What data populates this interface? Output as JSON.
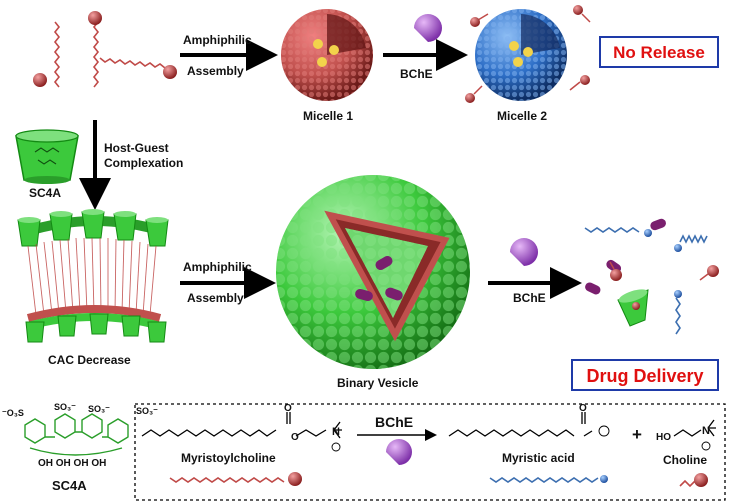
{
  "top": {
    "assembly_line1": "Amphiphilic",
    "assembly_line2": "Assembly",
    "micelle1": "Micelle 1",
    "enzyme": "BChE",
    "micelle2": "Micelle 2",
    "no_release": "No Release"
  },
  "middle": {
    "host_guest_line1": "Host-Guest",
    "host_guest_line2": "Complexation",
    "sc4a": "SC4A",
    "assembly_line1": "Amphiphilic",
    "assembly_line2": "Assembly",
    "cac": "CAC Decrease",
    "vesicle": "Binary Vesicle",
    "enzyme": "BChE",
    "drug_delivery": "Drug Delivery"
  },
  "bottom": {
    "sc4a": "SC4A",
    "so3_a": "SO₃⁻",
    "so3_b": "⁻O₃S",
    "so3_c": "SO₃⁻",
    "so3_d": "SO₃⁻",
    "oh": "OH OH OH OH",
    "enzyme": "BChE",
    "myristoylcholine": "Myristoylcholine",
    "myristic_acid": "Myristic acid",
    "plus": "+",
    "choline": "Choline",
    "ho": "HO",
    "o1": "O",
    "o2": "O",
    "o3": "O",
    "n1": "N",
    "n2": "N"
  },
  "colors": {
    "micelle_red": "#c0504d",
    "micelle_blue": "#2e6fc7",
    "vesicle_green": "#3cc93c",
    "enzyme_purple": "#b05bd8",
    "drug_purple": "#7a1f6e",
    "box_red": "#e01010",
    "box_blue": "#1e3aa8"
  }
}
